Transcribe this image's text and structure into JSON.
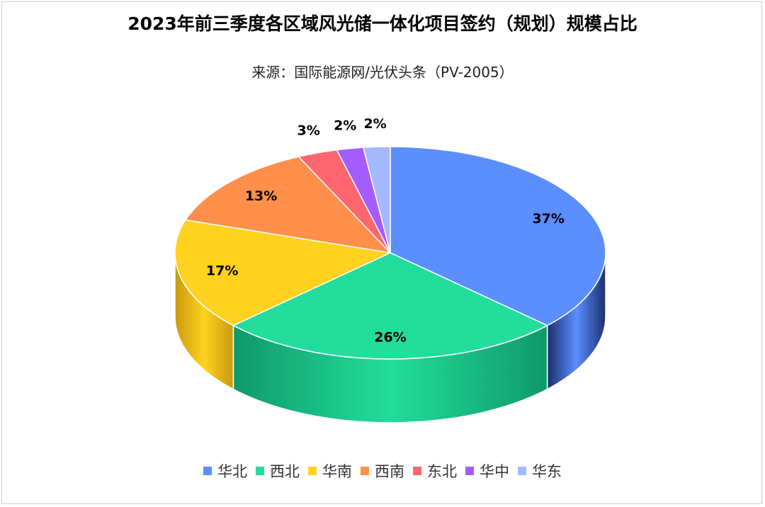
{
  "chart_data": {
    "type": "pie",
    "title": "2023年前三季度各区域风光储一体化项目签约（规划）规模占比",
    "subtitle": "来源：国际能源网/光伏头条（PV-2005）",
    "legend_position": "bottom",
    "categories": [
      "华北",
      "西北",
      "华南",
      "西南",
      "东北",
      "华中",
      "华东"
    ],
    "values": [
      37,
      26,
      17,
      13,
      3,
      2,
      2
    ],
    "data_labels": [
      "37%",
      "26%",
      "17%",
      "13%",
      "3%",
      "2%",
      "2%"
    ],
    "colors": [
      "#5B8EFF",
      "#22DD9B",
      "#FFD21F",
      "#FF8F4A",
      "#FF6670",
      "#A35CFF",
      "#A5B9FF"
    ],
    "side_colors": [
      "#1B2F6E",
      "#0E9A6A",
      "#C89A10",
      "#C4622A",
      "#C23D45",
      "#6E34B3",
      "#7183C9"
    ]
  }
}
